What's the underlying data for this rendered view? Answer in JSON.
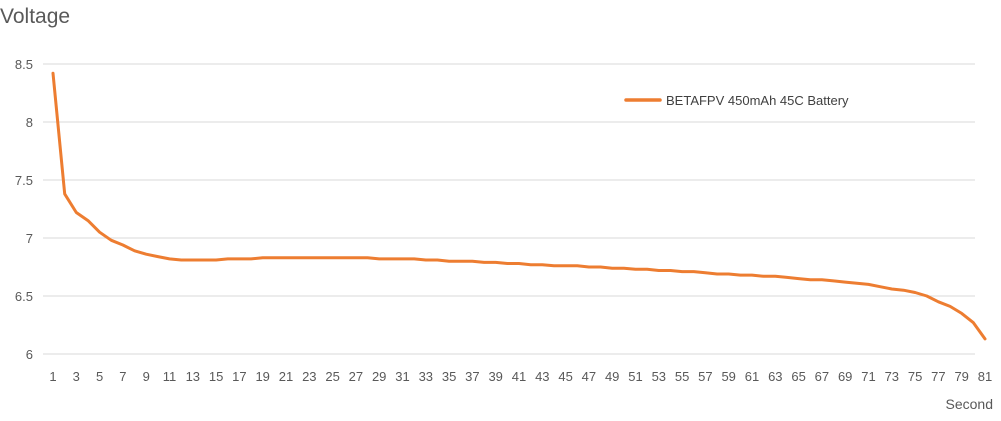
{
  "chart_data": {
    "type": "line",
    "title": "",
    "ylabel": "Voltage",
    "xlabel": "Second",
    "ylim": [
      6,
      8.5
    ],
    "yticks": [
      6,
      6.5,
      7,
      7.5,
      8,
      8.5
    ],
    "xlim": [
      1,
      81
    ],
    "xticks": [
      1,
      3,
      5,
      7,
      9,
      11,
      13,
      15,
      17,
      19,
      21,
      23,
      25,
      27,
      29,
      31,
      33,
      35,
      37,
      39,
      41,
      43,
      45,
      47,
      49,
      51,
      53,
      55,
      57,
      59,
      61,
      63,
      65,
      67,
      69,
      71,
      73,
      75,
      77,
      79,
      81
    ],
    "grid": "horizontal",
    "legend_position": "top-right",
    "series": [
      {
        "name": "BETAFPV 450mAh 45C Battery",
        "color": "#ED7D31",
        "x": [
          1,
          2,
          3,
          4,
          5,
          6,
          7,
          8,
          9,
          10,
          11,
          12,
          13,
          14,
          15,
          16,
          17,
          18,
          19,
          20,
          21,
          22,
          23,
          24,
          25,
          26,
          27,
          28,
          29,
          30,
          31,
          32,
          33,
          34,
          35,
          36,
          37,
          38,
          39,
          40,
          41,
          42,
          43,
          44,
          45,
          46,
          47,
          48,
          49,
          50,
          51,
          52,
          53,
          54,
          55,
          56,
          57,
          58,
          59,
          60,
          61,
          62,
          63,
          64,
          65,
          66,
          67,
          68,
          69,
          70,
          71,
          72,
          73,
          74,
          75,
          76,
          77,
          78,
          79,
          80,
          81
        ],
        "values": [
          8.42,
          7.38,
          7.22,
          7.15,
          7.05,
          6.98,
          6.94,
          6.89,
          6.86,
          6.84,
          6.82,
          6.81,
          6.81,
          6.81,
          6.81,
          6.82,
          6.82,
          6.82,
          6.83,
          6.83,
          6.83,
          6.83,
          6.83,
          6.83,
          6.83,
          6.83,
          6.83,
          6.83,
          6.82,
          6.82,
          6.82,
          6.82,
          6.81,
          6.81,
          6.8,
          6.8,
          6.8,
          6.79,
          6.79,
          6.78,
          6.78,
          6.77,
          6.77,
          6.76,
          6.76,
          6.76,
          6.75,
          6.75,
          6.74,
          6.74,
          6.73,
          6.73,
          6.72,
          6.72,
          6.71,
          6.71,
          6.7,
          6.69,
          6.69,
          6.68,
          6.68,
          6.67,
          6.67,
          6.66,
          6.65,
          6.64,
          6.64,
          6.63,
          6.62,
          6.61,
          6.6,
          6.58,
          6.56,
          6.55,
          6.53,
          6.5,
          6.45,
          6.41,
          6.35,
          6.27,
          6.13
        ]
      }
    ]
  }
}
